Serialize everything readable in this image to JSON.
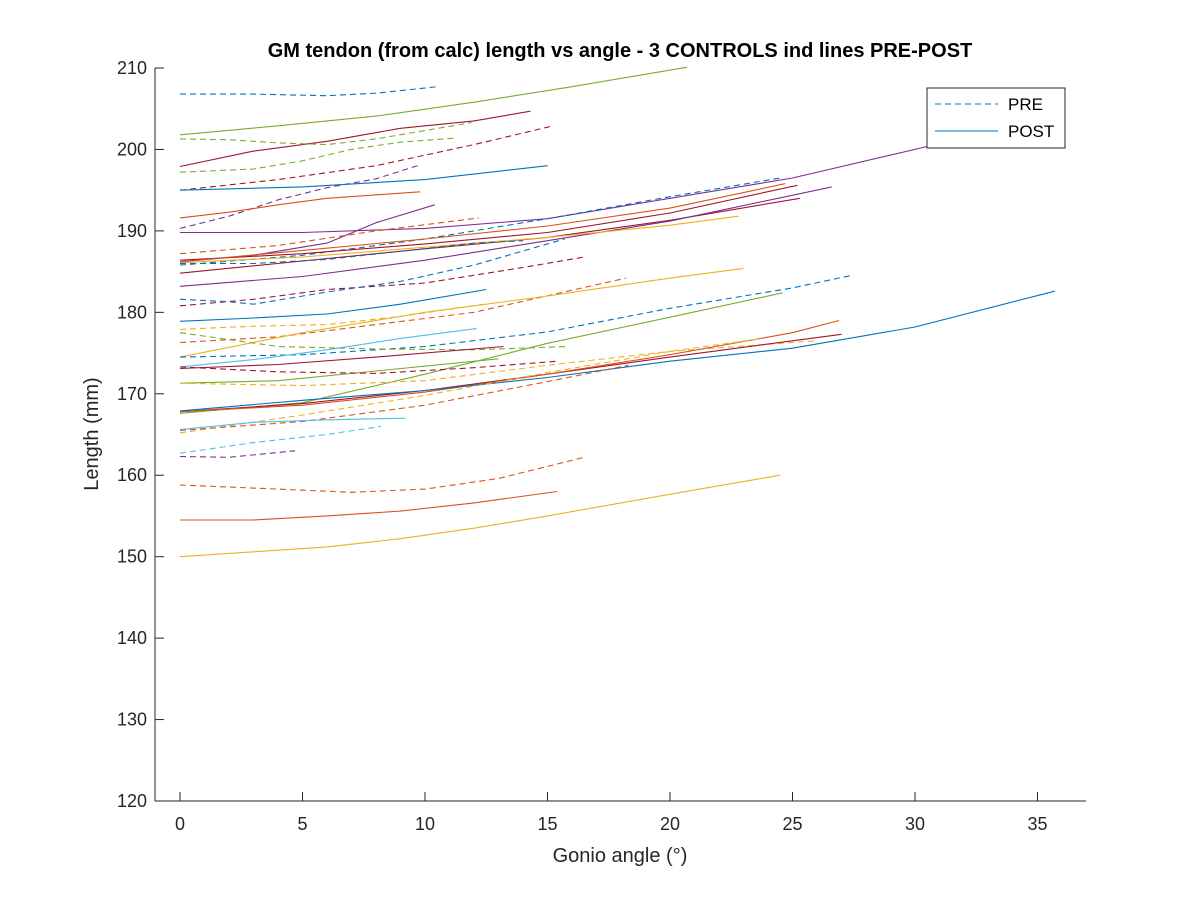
{
  "chart_data": {
    "type": "line",
    "title": "GM tendon (from calc) length vs angle - 3 CONTROLS ind lines PRE-POST",
    "xlabel": "Gonio angle (°)",
    "ylabel": "Length (mm)",
    "xlim": [
      -1,
      37
    ],
    "ylim": [
      120,
      210
    ],
    "xticks": [
      0,
      5,
      10,
      15,
      20,
      25,
      30,
      35
    ],
    "yticks": [
      120,
      130,
      140,
      150,
      160,
      170,
      180,
      190,
      200,
      210
    ],
    "grid": false,
    "legend": {
      "placement": "top-right",
      "entries": [
        {
          "label": "PRE",
          "style": "dashed",
          "color": "#0072bd"
        },
        {
          "label": "POST",
          "style": "solid",
          "color": "#0072bd"
        }
      ]
    },
    "series": [
      {
        "color": "#0072bd",
        "style": "dashed",
        "x": [
          0,
          3,
          6,
          8,
          10.5
        ],
        "y": [
          206.8,
          206.8,
          206.6,
          206.9,
          207.7
        ]
      },
      {
        "color": "#77ac30",
        "style": "solid",
        "x": [
          0,
          4,
          8,
          12,
          16,
          20.7
        ],
        "y": [
          201.8,
          202.9,
          204.1,
          205.8,
          207.7,
          210.1
        ]
      },
      {
        "color": "#a2142f",
        "style": "solid",
        "x": [
          0,
          3,
          6,
          9,
          12,
          14.3
        ],
        "y": [
          197.9,
          199.8,
          201.0,
          202.6,
          203.5,
          204.7
        ]
      },
      {
        "color": "#77ac30",
        "style": "dashed",
        "x": [
          0,
          2,
          4,
          6,
          8,
          11.9
        ],
        "y": [
          201.3,
          201.2,
          200.8,
          200.6,
          201.3,
          203.3
        ]
      },
      {
        "color": "#a2142f",
        "style": "dashed",
        "x": [
          0,
          4,
          8,
          12,
          15.1
        ],
        "y": [
          195.0,
          196.3,
          198.0,
          200.6,
          202.8
        ]
      },
      {
        "color": "#77ac30",
        "style": "dashed",
        "x": [
          0,
          3,
          5,
          7,
          9,
          11.3
        ],
        "y": [
          197.2,
          197.6,
          198.6,
          200.0,
          200.9,
          201.4
        ]
      },
      {
        "color": "#7e2f8e",
        "style": "dashed",
        "x": [
          0,
          2,
          4,
          6,
          8,
          9.7
        ],
        "y": [
          190.3,
          191.8,
          193.8,
          195.3,
          196.4,
          198.0
        ]
      },
      {
        "color": "#0072bd",
        "style": "solid",
        "x": [
          0,
          5,
          10,
          15
        ],
        "y": [
          195.0,
          195.4,
          196.3,
          198.0
        ]
      },
      {
        "color": "#d95319",
        "style": "solid",
        "x": [
          0,
          2,
          4,
          6,
          9.8
        ],
        "y": [
          191.6,
          192.3,
          193.2,
          194.0,
          194.8
        ]
      },
      {
        "color": "#7e2f8e",
        "style": "solid",
        "x": [
          0,
          3,
          6,
          8,
          10.4
        ],
        "y": [
          186.2,
          187.0,
          188.5,
          191.0,
          193.2
        ]
      },
      {
        "color": "#7e2f8e",
        "style": "solid",
        "x": [
          0,
          5,
          10,
          15,
          20,
          25,
          30,
          33
        ],
        "y": [
          189.8,
          189.8,
          190.3,
          191.5,
          194.0,
          196.5,
          200.0,
          202.2
        ]
      },
      {
        "color": "#d95319",
        "style": "dashed",
        "x": [
          0,
          4,
          8,
          12.2
        ],
        "y": [
          187.2,
          188.2,
          190.0,
          191.6
        ]
      },
      {
        "color": "#0072bd",
        "style": "dashed",
        "x": [
          0,
          5,
          10,
          15,
          20,
          24.5
        ],
        "y": [
          185.8,
          187.0,
          189.0,
          191.5,
          194.2,
          196.5
        ]
      },
      {
        "color": "#a2142f",
        "style": "solid",
        "x": [
          0,
          5,
          10,
          15,
          20,
          25.2
        ],
        "y": [
          186.4,
          187.2,
          188.4,
          189.8,
          192.2,
          195.6
        ]
      },
      {
        "color": "#d95319",
        "style": "solid",
        "x": [
          0,
          5,
          10,
          15,
          20,
          24.7
        ],
        "y": [
          186.2,
          187.6,
          189.0,
          190.6,
          192.8,
          195.8
        ]
      },
      {
        "color": "#a2142f",
        "style": "solid",
        "x": [
          0,
          5,
          10,
          15,
          20,
          25.3
        ],
        "y": [
          184.8,
          186.3,
          187.8,
          189.2,
          191.3,
          194.0
        ]
      },
      {
        "color": "#7e2f8e",
        "style": "solid",
        "x": [
          0,
          5,
          10,
          15,
          20,
          26.6
        ],
        "y": [
          183.2,
          184.4,
          186.4,
          188.8,
          191.2,
          195.4
        ]
      },
      {
        "color": "#edb120",
        "style": "solid",
        "x": [
          0,
          5,
          10,
          15,
          20,
          22.8
        ],
        "y": [
          186.1,
          186.8,
          188.0,
          189.2,
          190.7,
          191.8
        ]
      },
      {
        "color": "#0072bd",
        "style": "dashed",
        "x": [
          0,
          3,
          6,
          9,
          12,
          14
        ],
        "y": [
          186.0,
          186.0,
          186.5,
          187.5,
          188.5,
          188.8
        ]
      },
      {
        "color": "#a2142f",
        "style": "dashed",
        "x": [
          0,
          3,
          6,
          10,
          14,
          16.5
        ],
        "y": [
          180.8,
          181.6,
          182.8,
          183.6,
          185.5,
          186.8
        ]
      },
      {
        "color": "#0072bd",
        "style": "dashed",
        "x": [
          0,
          2,
          3,
          6,
          9,
          12,
          15.7
        ],
        "y": [
          181.6,
          181.3,
          181.0,
          182.5,
          183.8,
          185.8,
          189.0
        ]
      },
      {
        "color": "#0072bd",
        "style": "solid",
        "x": [
          0,
          3,
          6,
          9,
          12.5
        ],
        "y": [
          178.9,
          179.3,
          179.8,
          181.0,
          182.8
        ]
      },
      {
        "color": "#d95319",
        "style": "dashed",
        "x": [
          0,
          4,
          8,
          12,
          18.2
        ],
        "y": [
          176.3,
          177.0,
          178.5,
          180.0,
          184.2
        ]
      },
      {
        "color": "#edb120",
        "style": "solid",
        "x": [
          0,
          5,
          10,
          15,
          20,
          23
        ],
        "y": [
          174.5,
          177.5,
          180.0,
          182.0,
          184.2,
          185.4
        ]
      },
      {
        "color": "#edb120",
        "style": "dashed",
        "x": [
          0,
          3,
          6,
          9,
          12.4
        ],
        "y": [
          177.9,
          178.3,
          178.5,
          179.5,
          181.0
        ]
      },
      {
        "color": "#0072bd",
        "style": "dashed",
        "x": [
          0,
          5,
          10,
          15,
          20,
          25,
          27.5
        ],
        "y": [
          174.5,
          174.8,
          175.8,
          177.6,
          180.5,
          183.0,
          184.6
        ]
      },
      {
        "color": "#77ac30",
        "style": "solid",
        "x": [
          0,
          5,
          10,
          15,
          20,
          24.6
        ],
        "y": [
          167.6,
          168.9,
          172.4,
          176.2,
          179.4,
          182.4
        ]
      },
      {
        "color": "#4dbeee",
        "style": "solid",
        "x": [
          0,
          3,
          6,
          9,
          12.1
        ],
        "y": [
          173.3,
          174.2,
          175.4,
          176.8,
          178.0
        ]
      },
      {
        "color": "#77ac30",
        "style": "dashed",
        "x": [
          0,
          4,
          8,
          12,
          15.8
        ],
        "y": [
          177.5,
          175.8,
          175.5,
          175.4,
          175.8
        ]
      },
      {
        "color": "#a2142f",
        "style": "solid",
        "x": [
          0,
          4,
          8,
          13.2
        ],
        "y": [
          173.1,
          173.6,
          174.5,
          175.8
        ]
      },
      {
        "color": "#77ac30",
        "style": "solid",
        "x": [
          0,
          4,
          8,
          13
        ],
        "y": [
          171.3,
          171.6,
          172.8,
          174.3
        ]
      },
      {
        "color": "#a2142f",
        "style": "dashed",
        "x": [
          0,
          4,
          8,
          12,
          15.4
        ],
        "y": [
          173.3,
          172.7,
          172.5,
          173.2,
          174.0
        ]
      },
      {
        "color": "#edb120",
        "style": "dashed",
        "x": [
          0,
          5,
          10,
          15,
          20,
          25,
          26
        ],
        "y": [
          171.3,
          171.0,
          171.6,
          173.5,
          175.2,
          176.3,
          176.5
        ]
      },
      {
        "color": "#a2142f",
        "style": "solid",
        "x": [
          0,
          5,
          10,
          15,
          20,
          25,
          27
        ],
        "y": [
          167.8,
          168.8,
          170.4,
          172.4,
          174.5,
          176.5,
          177.3
        ]
      },
      {
        "color": "#d95319",
        "style": "solid",
        "x": [
          0,
          5,
          10,
          15,
          20,
          25,
          26.9
        ],
        "y": [
          167.8,
          168.6,
          170.2,
          172.4,
          174.8,
          177.5,
          179.0
        ]
      },
      {
        "color": "#0072bd",
        "style": "solid",
        "x": [
          0,
          5,
          10,
          15,
          20,
          25,
          30,
          35.7
        ],
        "y": [
          167.9,
          169.2,
          170.4,
          172.0,
          174.0,
          175.6,
          178.2,
          182.6
        ]
      },
      {
        "color": "#edb120",
        "style": "dashed",
        "x": [
          0,
          5,
          10,
          15,
          20,
          23.8
        ],
        "y": [
          165.2,
          167.4,
          169.8,
          172.6,
          175.2,
          176.8
        ]
      },
      {
        "color": "#d95319",
        "style": "dashed",
        "x": [
          0,
          5,
          10,
          15,
          18.3
        ],
        "y": [
          165.5,
          166.6,
          168.6,
          171.5,
          173.5
        ]
      },
      {
        "color": "#4dbeee",
        "style": "solid",
        "x": [
          0,
          3,
          6,
          9.2
        ],
        "y": [
          165.6,
          166.5,
          166.8,
          167.0
        ]
      },
      {
        "color": "#4dbeee",
        "style": "dashed",
        "x": [
          0,
          3,
          6,
          8.2
        ],
        "y": [
          162.7,
          164.0,
          165.0,
          166.0
        ]
      },
      {
        "color": "#7e2f8e",
        "style": "dashed",
        "x": [
          0,
          2,
          4.7
        ],
        "y": [
          162.3,
          162.2,
          163.0
        ]
      },
      {
        "color": "#d95319",
        "style": "dashed",
        "x": [
          0,
          4,
          7,
          10,
          13,
          16.5
        ],
        "y": [
          158.8,
          158.3,
          157.9,
          158.3,
          159.6,
          162.2
        ]
      },
      {
        "color": "#d95319",
        "style": "solid",
        "x": [
          0,
          3,
          6,
          9,
          12,
          15.4
        ],
        "y": [
          154.5,
          154.5,
          155.0,
          155.6,
          156.6,
          158.0
        ]
      },
      {
        "color": "#edb120",
        "style": "solid",
        "x": [
          0,
          3,
          6,
          9,
          12,
          15,
          18,
          21,
          24.5
        ],
        "y": [
          150.0,
          150.6,
          151.2,
          152.2,
          153.5,
          155.0,
          156.6,
          158.2,
          160.0
        ]
      }
    ]
  }
}
